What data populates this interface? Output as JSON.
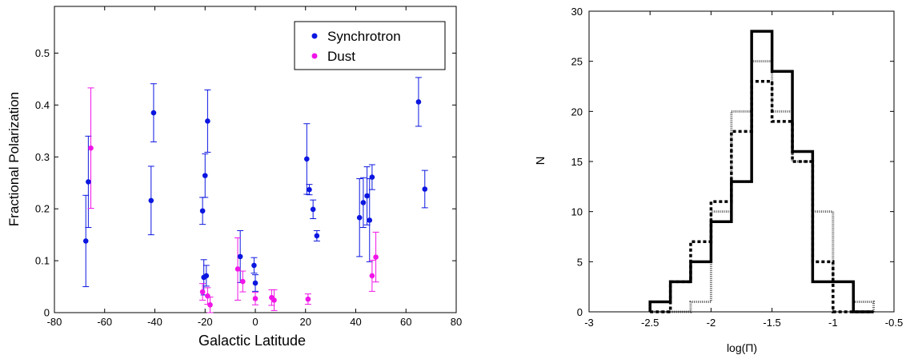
{
  "chart_data": [
    {
      "type": "scatter",
      "xlabel": "Galactic Latitude",
      "ylabel": "Fractional Polarization",
      "xlim": [
        -80,
        80
      ],
      "ylim": [
        0,
        0.59
      ],
      "xticks": [
        -80,
        -60,
        -40,
        -20,
        0,
        20,
        40,
        60,
        80
      ],
      "yticks": [
        0,
        0.1,
        0.2,
        0.3,
        0.4,
        0.5
      ],
      "ytick_labels": [
        "0",
        "0.1",
        "0.2",
        "0.3",
        "0.4",
        "0.5"
      ],
      "legend_position": "top-right",
      "series": [
        {
          "name": "Synchrotron",
          "color": "#0b16e0",
          "points": [
            {
              "x": -67.5,
              "y": 0.138,
              "lo": 0.05,
              "hi": 0.226
            },
            {
              "x": -66.5,
              "y": 0.252,
              "lo": 0.164,
              "hi": 0.34
            },
            {
              "x": -41.5,
              "y": 0.216,
              "lo": 0.15,
              "hi": 0.282
            },
            {
              "x": -40.5,
              "y": 0.385,
              "lo": 0.329,
              "hi": 0.441
            },
            {
              "x": -21.0,
              "y": 0.196,
              "lo": 0.17,
              "hi": 0.222
            },
            {
              "x": -20.5,
              "y": 0.068,
              "lo": 0.034,
              "hi": 0.102
            },
            {
              "x": -20.0,
              "y": 0.264,
              "lo": 0.222,
              "hi": 0.306
            },
            {
              "x": -19.5,
              "y": 0.071,
              "lo": 0.051,
              "hi": 0.091
            },
            {
              "x": -19.0,
              "y": 0.369,
              "lo": 0.309,
              "hi": 0.429
            },
            {
              "x": -6.0,
              "y": 0.108,
              "lo": 0.058,
              "hi": 0.158
            },
            {
              "x": -0.5,
              "y": 0.091,
              "lo": 0.076,
              "hi": 0.106
            },
            {
              "x": 0.0,
              "y": 0.057,
              "lo": 0.041,
              "hi": 0.073
            },
            {
              "x": 20.5,
              "y": 0.296,
              "lo": 0.228,
              "hi": 0.364
            },
            {
              "x": 21.5,
              "y": 0.237,
              "lo": 0.227,
              "hi": 0.247
            },
            {
              "x": 23.0,
              "y": 0.199,
              "lo": 0.181,
              "hi": 0.217
            },
            {
              "x": 24.5,
              "y": 0.148,
              "lo": 0.138,
              "hi": 0.158
            },
            {
              "x": 41.5,
              "y": 0.183,
              "lo": 0.108,
              "hi": 0.258
            },
            {
              "x": 43.0,
              "y": 0.212,
              "lo": 0.164,
              "hi": 0.26
            },
            {
              "x": 44.5,
              "y": 0.225,
              "lo": 0.169,
              "hi": 0.281
            },
            {
              "x": 45.5,
              "y": 0.178,
              "lo": 0.098,
              "hi": 0.258
            },
            {
              "x": 46.5,
              "y": 0.261,
              "lo": 0.237,
              "hi": 0.285
            },
            {
              "x": 65.0,
              "y": 0.406,
              "lo": 0.359,
              "hi": 0.453
            },
            {
              "x": 67.5,
              "y": 0.238,
              "lo": 0.202,
              "hi": 0.274
            }
          ]
        },
        {
          "name": "Dust",
          "color": "#f015e8",
          "points": [
            {
              "x": -65.5,
              "y": 0.317,
              "lo": 0.201,
              "hi": 0.433
            },
            {
              "x": -21.0,
              "y": 0.04,
              "lo": 0.024,
              "hi": 0.056
            },
            {
              "x": -19.0,
              "y": 0.032,
              "lo": 0.016,
              "hi": 0.048
            },
            {
              "x": -18.0,
              "y": 0.015,
              "lo": 0.0,
              "hi": 0.03
            },
            {
              "x": -7.0,
              "y": 0.084,
              "lo": 0.024,
              "hi": 0.144
            },
            {
              "x": -5.0,
              "y": 0.06,
              "lo": 0.04,
              "hi": 0.08
            },
            {
              "x": 0.0,
              "y": 0.027,
              "lo": 0.015,
              "hi": 0.039
            },
            {
              "x": 6.5,
              "y": 0.029,
              "lo": 0.014,
              "hi": 0.044
            },
            {
              "x": 7.5,
              "y": 0.024,
              "lo": 0.004,
              "hi": 0.044
            },
            {
              "x": 21.0,
              "y": 0.026,
              "lo": 0.016,
              "hi": 0.036
            },
            {
              "x": 46.5,
              "y": 0.071,
              "lo": 0.041,
              "hi": 0.101
            },
            {
              "x": 48.0,
              "y": 0.107,
              "lo": 0.059,
              "hi": 0.155
            }
          ]
        }
      ]
    },
    {
      "type": "histogram",
      "xlabel": "log(Π)",
      "ylabel": "N",
      "xlim": [
        -3,
        -0.5
      ],
      "ylim": [
        0,
        30
      ],
      "xticks": [
        -3,
        -2.5,
        -2,
        -1.5,
        -1,
        -0.5
      ],
      "yticks": [
        0,
        5,
        10,
        15,
        20,
        25,
        30
      ],
      "bin_edges": [
        -2.5,
        -2.333,
        -2.167,
        -2.0,
        -1.833,
        -1.667,
        -1.5,
        -1.333,
        -1.167,
        -1.0,
        -0.833,
        -0.667
      ],
      "series": [
        {
          "style": "solid",
          "color": "#000000",
          "counts": [
            1,
            3,
            5,
            9,
            13,
            28,
            24,
            16,
            3,
            3,
            0
          ]
        },
        {
          "style": "dashed",
          "color": "#000000",
          "counts": [
            0,
            3,
            7,
            11,
            18,
            23,
            19,
            15,
            5,
            0,
            0
          ]
        },
        {
          "style": "dotted",
          "color": "#555555",
          "counts": [
            0,
            0,
            1,
            10,
            20,
            25,
            20,
            15,
            10,
            3,
            1
          ]
        }
      ]
    }
  ]
}
